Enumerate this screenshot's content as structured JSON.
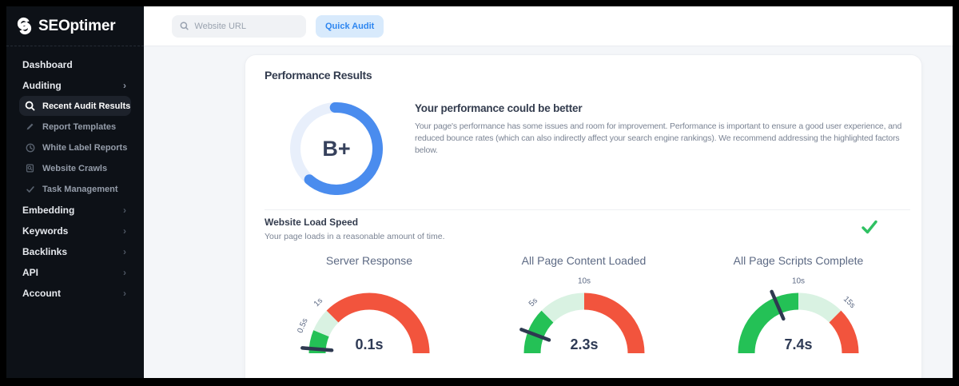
{
  "brand": {
    "name": "SEOptimer"
  },
  "topbar": {
    "search_placeholder": "Website URL",
    "quick_audit_label": "Quick Audit"
  },
  "sidebar": {
    "items": [
      {
        "label": "Dashboard"
      },
      {
        "label": "Auditing",
        "expanded": true
      }
    ],
    "audit_subitems": [
      {
        "label": "Recent Audit Results",
        "icon": "magnifier-icon",
        "active": true
      },
      {
        "label": "Report Templates",
        "icon": "pencil-icon"
      },
      {
        "label": "White Label Reports",
        "icon": "label-icon"
      },
      {
        "label": "Website Crawls",
        "icon": "crawl-icon"
      },
      {
        "label": "Task Management",
        "icon": "check-icon"
      }
    ],
    "bottom_items": [
      {
        "label": "Embedding"
      },
      {
        "label": "Keywords"
      },
      {
        "label": "Backlinks"
      },
      {
        "label": "API"
      },
      {
        "label": "Account"
      }
    ]
  },
  "main": {
    "card_title": "Performance Results",
    "verdict": {
      "heading": "Your performance could be better",
      "body": "Your page's performance has some issues and room for improvement. Performance is important to ensure a good user experience, and reduced bounce rates (which can also indirectly affect your search engine rankings). We recommend addressing the highlighted factors below."
    },
    "load_speed": {
      "heading": "Website Load Speed",
      "subtext": "Your page loads in a reasonable amount of time.",
      "status": "pass",
      "status_color": "#2fc162"
    }
  },
  "chart_data": {
    "donut": {
      "type": "donut",
      "label": "B+",
      "percent": 62,
      "color": "#4a8cee",
      "track": "#e8effb"
    },
    "gauges": [
      {
        "type": "gauge",
        "title": "Server Response",
        "value": 0.1,
        "display": "0.1s",
        "max": 4,
        "ticks": [
          {
            "label": "0.5s",
            "value": 0.5
          },
          {
            "label": "1s",
            "value": 1
          }
        ],
        "segments": [
          {
            "to": 0.5,
            "color": "#24c156"
          },
          {
            "to": 1,
            "color": "#d9f2e2"
          },
          {
            "to": 4,
            "color": "#f2543d"
          }
        ]
      },
      {
        "type": "gauge",
        "title": "All Page Content Loaded",
        "value": 2.3,
        "display": "2.3s",
        "max": 20,
        "ticks": [
          {
            "label": "5s",
            "value": 5
          },
          {
            "label": "10s",
            "value": 10
          }
        ],
        "segments": [
          {
            "to": 5,
            "color": "#24c156"
          },
          {
            "to": 10,
            "color": "#d9f2e2"
          },
          {
            "to": 20,
            "color": "#f2543d"
          }
        ]
      },
      {
        "type": "gauge",
        "title": "All Page Scripts Complete",
        "value": 7.4,
        "display": "7.4s",
        "max": 20,
        "ticks": [
          {
            "label": "10s",
            "value": 10
          },
          {
            "label": "15s",
            "value": 15
          }
        ],
        "segments": [
          {
            "to": 10,
            "color": "#24c156"
          },
          {
            "to": 15,
            "color": "#d9f2e2"
          },
          {
            "to": 20,
            "color": "#f2543d"
          }
        ]
      }
    ],
    "needle_color": "#2e3950",
    "value_color": "#2e3a55",
    "tick_color": "#5e6b85"
  }
}
